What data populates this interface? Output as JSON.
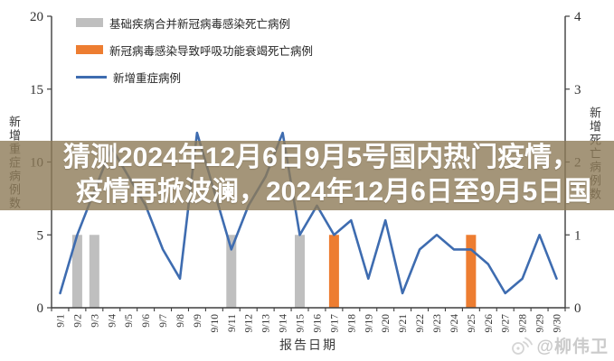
{
  "title_overlay": {
    "line1": "猜测2024年12月6日9月5号国内热门疫情，",
    "line2": "疫情再掀波澜，2024年12月6日至9月5日国",
    "band_color": "#8d7a58",
    "text_color": "#ffffff"
  },
  "watermark": {
    "text": "@柳伟卫",
    "icon": "weibo-eye-icon",
    "color": "#bababa"
  },
  "chart_data": {
    "type": "combo",
    "categories": [
      "9/1",
      "9/2",
      "9/3",
      "9/4",
      "9/5",
      "9/6",
      "9/7",
      "9/8",
      "9/9",
      "9/10",
      "9/11",
      "9/12",
      "9/13",
      "9/14",
      "9/15",
      "9/16",
      "9/17",
      "9/18",
      "9/19",
      "9/20",
      "9/21",
      "9/22",
      "9/23",
      "9/24",
      "9/25",
      "9/26",
      "9/27",
      "9/28",
      "9/29",
      "9/30"
    ],
    "series": [
      {
        "name": "基础疾病合并新冠病毒感染死亡病例",
        "type": "bar",
        "axis": "right",
        "color": "#bfbfbf",
        "values": [
          0,
          1,
          1,
          0,
          0,
          0,
          0,
          0,
          0,
          0,
          1,
          0,
          0,
          0,
          1,
          0,
          0,
          0,
          0,
          0,
          0,
          0,
          0,
          0,
          0,
          0,
          0,
          0,
          0,
          0
        ]
      },
      {
        "name": "新冠病毒感染导致呼吸功能衰竭死亡病例",
        "type": "bar",
        "axis": "right",
        "color": "#ed7d31",
        "values": [
          0,
          0,
          0,
          0,
          0,
          0,
          0,
          0,
          0,
          0,
          0,
          0,
          0,
          0,
          0,
          0,
          1,
          0,
          0,
          0,
          0,
          0,
          0,
          0,
          1,
          0,
          0,
          0,
          0,
          0
        ]
      },
      {
        "name": "新增重症病例",
        "type": "line",
        "axis": "left",
        "color": "#3e6cb0",
        "values": [
          1,
          5,
          8,
          11,
          9,
          7,
          4,
          2,
          12,
          8,
          4,
          7,
          9,
          12,
          5,
          7,
          5,
          6,
          2,
          6,
          1,
          4,
          5,
          4,
          4,
          3,
          1,
          2,
          5,
          2
        ]
      }
    ],
    "xlabel": "报告日期",
    "left_axis": {
      "label": "新增重症病例数",
      "min": 0,
      "max": 20,
      "step": 5
    },
    "right_axis": {
      "label": "新增死亡病例数",
      "min": 0,
      "max": 4,
      "step": 1
    },
    "grid": false,
    "legend_position": "top-left"
  }
}
